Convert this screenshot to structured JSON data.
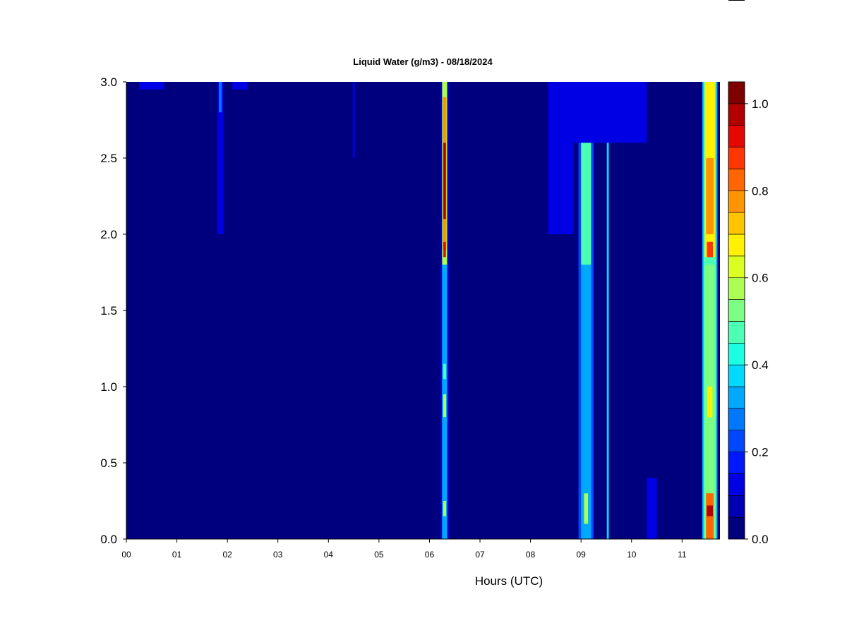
{
  "chart_data": {
    "type": "heatmap",
    "title": "Liquid Water (g/m3) - 08/18/2024",
    "xlabel": "Hours (UTC)",
    "ylabel": "",
    "x_tick_labels": [
      "00",
      "01",
      "02",
      "03",
      "04",
      "05",
      "06",
      "07",
      "08",
      "09",
      "10",
      "11"
    ],
    "x_ticks": [
      0,
      1,
      2,
      3,
      4,
      5,
      6,
      7,
      8,
      9,
      10,
      11
    ],
    "xlim": [
      0,
      11.75
    ],
    "y_tick_labels": [
      "0.0",
      "0.5",
      "1.0",
      "1.5",
      "2.0",
      "2.5",
      "3.0"
    ],
    "y_ticks": [
      0,
      0.5,
      1.0,
      1.5,
      2.0,
      2.5,
      3.0
    ],
    "ylim": [
      0,
      3.0
    ],
    "colorbar": {
      "levels": [
        0.0,
        0.05,
        0.1,
        0.15,
        0.2,
        0.25,
        0.3,
        0.35,
        0.4,
        0.45,
        0.5,
        0.55,
        0.6,
        0.65,
        0.7,
        0.75,
        0.8,
        0.85,
        0.9,
        0.95,
        1.0,
        1.05
      ],
      "colors": [
        "#00007F",
        "#0000B2",
        "#0000E5",
        "#0018FF",
        "#0048FF",
        "#0078FF",
        "#00A8FF",
        "#00D8FF",
        "#1CFFE2",
        "#4CFFB2",
        "#7CFF82",
        "#ACFF52",
        "#DCFF22",
        "#FFF100",
        "#FFC300",
        "#FF9400",
        "#FF6500",
        "#FF3600",
        "#E50800",
        "#B20000",
        "#7F0000"
      ],
      "tick_labels": [
        "0.0",
        "0.2",
        "0.4",
        "0.6",
        "0.8",
        "1.0"
      ],
      "ticks": [
        0.0,
        0.2,
        0.4,
        0.6,
        0.8,
        1.0
      ]
    },
    "background_value": 0.0,
    "features": [
      {
        "x": 0.5,
        "width": 0.5,
        "y0": 2.95,
        "y1": 3.0,
        "value": 0.1
      },
      {
        "x": 1.86,
        "width": 0.12,
        "y0": 2.0,
        "y1": 3.0,
        "value": 0.1
      },
      {
        "x": 1.86,
        "width": 0.06,
        "y0": 2.8,
        "y1": 3.0,
        "value": 0.25
      },
      {
        "x": 2.25,
        "width": 0.3,
        "y0": 2.95,
        "y1": 3.0,
        "value": 0.1
      },
      {
        "x": 4.5,
        "width": 0.04,
        "y0": 2.5,
        "y1": 3.0,
        "value": 0.1
      },
      {
        "x": 6.3,
        "width": 0.16,
        "y0": 0.0,
        "y1": 3.0,
        "value": 0.1
      },
      {
        "x": 6.3,
        "width": 0.1,
        "y0": 0.0,
        "y1": 1.8,
        "value": 0.3
      },
      {
        "x": 6.3,
        "width": 0.06,
        "y0": 0.15,
        "y1": 0.25,
        "value": 0.55
      },
      {
        "x": 6.3,
        "width": 0.06,
        "y0": 0.8,
        "y1": 0.95,
        "value": 0.55
      },
      {
        "x": 6.3,
        "width": 0.06,
        "y0": 1.05,
        "y1": 1.15,
        "value": 0.45
      },
      {
        "x": 6.3,
        "width": 0.1,
        "y0": 1.8,
        "y1": 3.0,
        "value": 0.55
      },
      {
        "x": 6.3,
        "width": 0.07,
        "y0": 1.9,
        "y1": 2.9,
        "value": 0.75
      },
      {
        "x": 6.3,
        "width": 0.05,
        "y0": 2.1,
        "y1": 2.6,
        "value": 0.95
      },
      {
        "x": 6.3,
        "width": 0.05,
        "y0": 1.85,
        "y1": 1.95,
        "value": 0.9
      },
      {
        "x": 8.6,
        "width": 0.5,
        "y0": 2.0,
        "y1": 3.0,
        "value": 0.1
      },
      {
        "x": 9.1,
        "width": 0.3,
        "y0": 0.0,
        "y1": 3.0,
        "value": 0.2
      },
      {
        "x": 9.1,
        "width": 0.2,
        "y0": 0.0,
        "y1": 1.8,
        "value": 0.3
      },
      {
        "x": 9.1,
        "width": 0.2,
        "y0": 1.8,
        "y1": 3.0,
        "value": 0.45
      },
      {
        "x": 9.1,
        "width": 0.08,
        "y0": 0.1,
        "y1": 0.3,
        "value": 0.55
      },
      {
        "x": 9.53,
        "width": 0.04,
        "y0": 0.0,
        "y1": 3.0,
        "value": 0.35
      },
      {
        "x": 9.5,
        "width": 1.6,
        "y0": 2.6,
        "y1": 3.0,
        "value": 0.1
      },
      {
        "x": 10.4,
        "width": 0.2,
        "y0": 0.0,
        "y1": 0.4,
        "value": 0.1
      },
      {
        "x": 11.55,
        "width": 0.3,
        "y0": 0.0,
        "y1": 3.0,
        "value": 0.3
      },
      {
        "x": 11.55,
        "width": 0.25,
        "y0": 0.0,
        "y1": 3.0,
        "value": 0.45
      },
      {
        "x": 11.55,
        "width": 0.2,
        "y0": 1.85,
        "y1": 3.0,
        "value": 0.65
      },
      {
        "x": 11.55,
        "width": 0.15,
        "y0": 2.0,
        "y1": 2.5,
        "value": 0.75
      },
      {
        "x": 11.55,
        "width": 0.12,
        "y0": 1.85,
        "y1": 1.95,
        "value": 0.85
      },
      {
        "x": 11.55,
        "width": 0.2,
        "y0": 0.0,
        "y1": 1.8,
        "value": 0.5
      },
      {
        "x": 11.55,
        "width": 0.1,
        "y0": 0.8,
        "y1": 1.0,
        "value": 0.65
      },
      {
        "x": 11.55,
        "width": 0.15,
        "y0": 0.0,
        "y1": 0.3,
        "value": 0.8
      },
      {
        "x": 11.55,
        "width": 0.12,
        "y0": 0.15,
        "y1": 0.22,
        "value": 0.95
      }
    ]
  }
}
